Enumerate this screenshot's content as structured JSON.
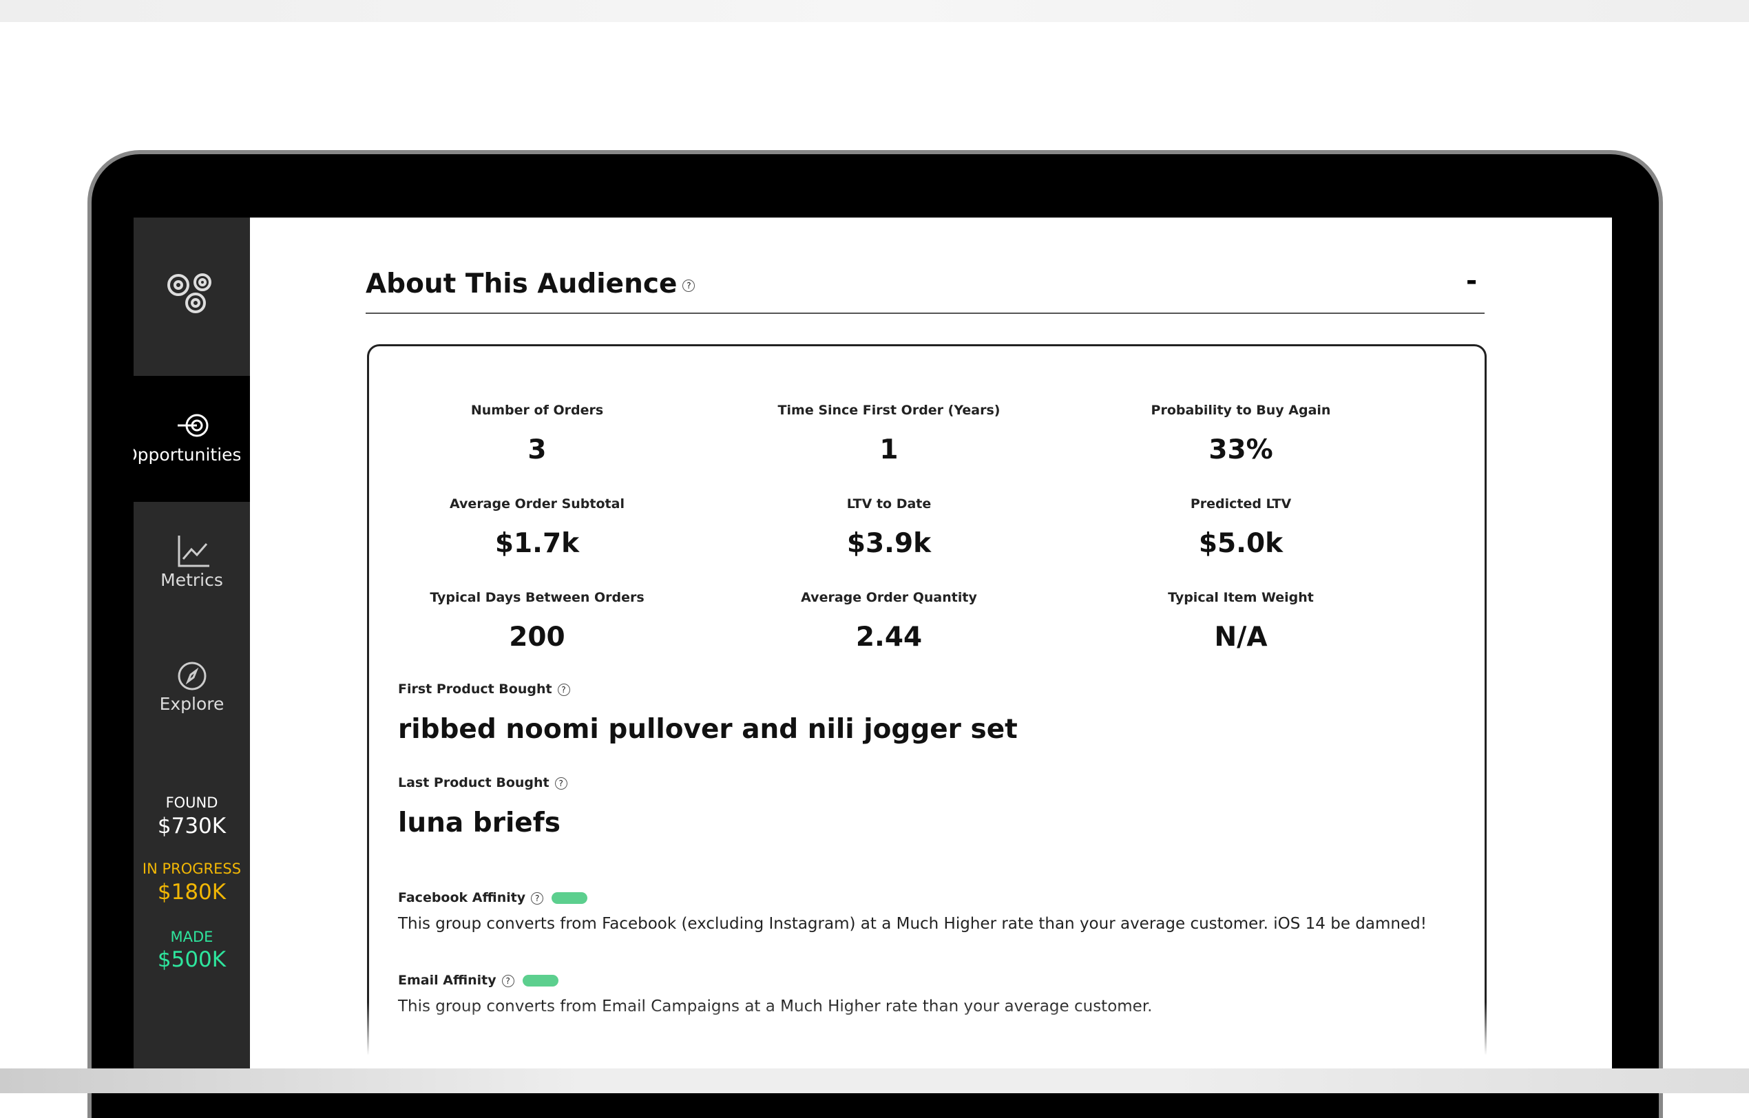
{
  "sidebar": {
    "nav": [
      {
        "label": "Opportunities"
      },
      {
        "label": "Metrics"
      },
      {
        "label": "Explore"
      }
    ],
    "stats": [
      {
        "label": "FOUND",
        "value": "$730K",
        "color": "#ffffff"
      },
      {
        "label": "IN PROGRESS",
        "value": "$180K",
        "color": "#f2b705"
      },
      {
        "label": "MADE",
        "value": "$500K",
        "color": "#2ee59d"
      }
    ]
  },
  "header": {
    "title": "About This Audience",
    "collapse": "-"
  },
  "metrics": [
    {
      "label": "Number of Orders",
      "value": "3"
    },
    {
      "label": "Time Since First Order (Years)",
      "value": "1"
    },
    {
      "label": "Probability to Buy Again",
      "value": "33%"
    },
    {
      "label": "Average Order Subtotal",
      "value": "$1.7k"
    },
    {
      "label": "LTV to Date",
      "value": "$3.9k"
    },
    {
      "label": "Predicted LTV",
      "value": "$5.0k"
    },
    {
      "label": "Typical Days Between Orders",
      "value": "200"
    },
    {
      "label": "Average Order Quantity",
      "value": "2.44"
    },
    {
      "label": "Typical Item Weight",
      "value": "N/A"
    }
  ],
  "products": [
    {
      "label": "First Product Bought",
      "value": "ribbed noomi pullover and nili jogger set"
    },
    {
      "label": "Last Product Bought",
      "value": "luna briefs"
    }
  ],
  "affinities": [
    {
      "label": "Facebook Affinity",
      "text": "This group converts from Facebook (excluding Instagram) at a Much Higher rate than your average customer. iOS 14 be damned!"
    },
    {
      "label": "Email Affinity",
      "text": "This group converts from Email Campaigns at a Much Higher rate than your average customer."
    }
  ]
}
